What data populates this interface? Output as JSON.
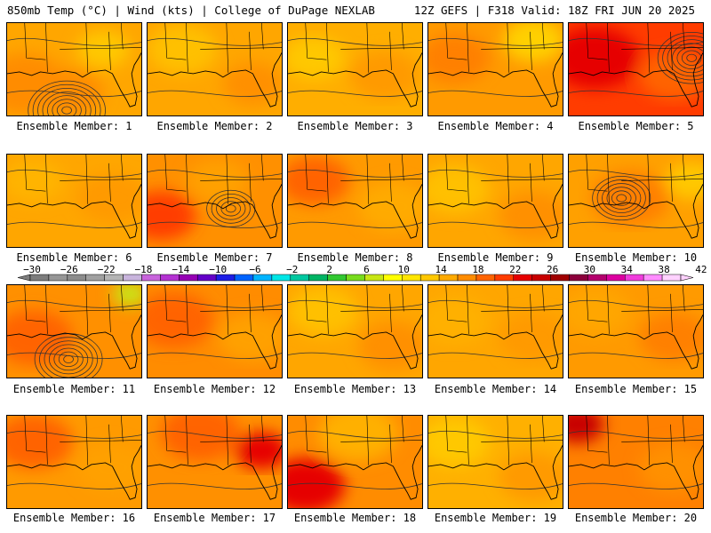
{
  "header": {
    "left_title": "850mb Temp (°C) | Wind (kts) | College of DuPage NEXLAB",
    "right_title": "12Z GEFS | F318 Valid: 18Z FRI JUN 20 2025"
  },
  "colorbar": {
    "tick_labels": [
      "−30",
      "−26",
      "−22",
      "−18",
      "−14",
      "−10",
      "−6",
      "−2",
      "2",
      "6",
      "10",
      "14",
      "18",
      "22",
      "26",
      "30",
      "34",
      "38",
      "42"
    ],
    "colors": [
      "#7d7d7d",
      "#969696",
      "#8c8c8c",
      "#a0a0a0",
      "#b4b4b4",
      "#c8b4dc",
      "#c864dc",
      "#b432d2",
      "#9600b4",
      "#6400c8",
      "#1e1ee6",
      "#0064ff",
      "#00b4ff",
      "#00e6e6",
      "#00c8a0",
      "#00b464",
      "#32c832",
      "#78dc1e",
      "#c8e614",
      "#ffff00",
      "#ffe600",
      "#ffc800",
      "#ffaa00",
      "#ff8c00",
      "#ff6400",
      "#ff3c00",
      "#e60000",
      "#c80000",
      "#a00000",
      "#8c003c",
      "#b4006e",
      "#dc00a0",
      "#f03cdc",
      "#ff8cff",
      "#ffd2ff"
    ]
  },
  "members": [
    {
      "label": "Ensemble Member: 1"
    },
    {
      "label": "Ensemble Member: 2"
    },
    {
      "label": "Ensemble Member: 3"
    },
    {
      "label": "Ensemble Member: 4"
    },
    {
      "label": "Ensemble Member: 5"
    },
    {
      "label": "Ensemble Member: 6"
    },
    {
      "label": "Ensemble Member: 7"
    },
    {
      "label": "Ensemble Member: 8"
    },
    {
      "label": "Ensemble Member: 9"
    },
    {
      "label": "Ensemble Member: 10"
    },
    {
      "label": "Ensemble Member: 11"
    },
    {
      "label": "Ensemble Member: 12"
    },
    {
      "label": "Ensemble Member: 13"
    },
    {
      "label": "Ensemble Member: 14"
    },
    {
      "label": "Ensemble Member: 15"
    },
    {
      "label": "Ensemble Member: 16"
    },
    {
      "label": "Ensemble Member: 17"
    },
    {
      "label": "Ensemble Member: 18"
    },
    {
      "label": "Ensemble Member: 19"
    },
    {
      "label": "Ensemble Member: 20"
    }
  ]
}
